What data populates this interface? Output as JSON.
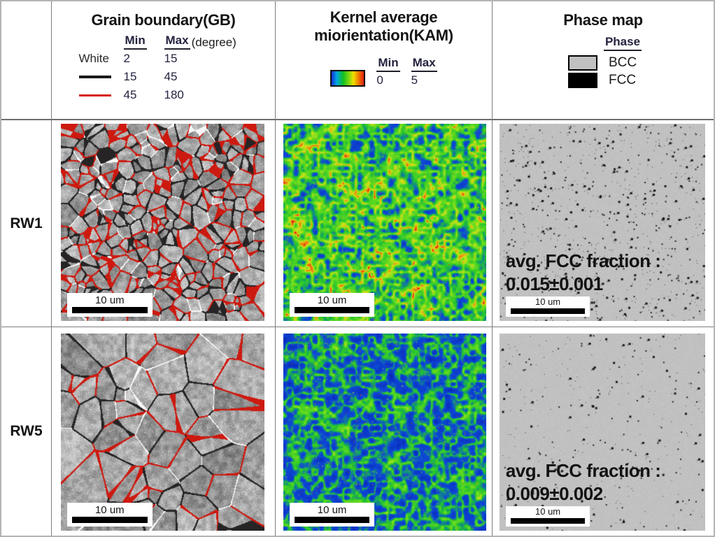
{
  "header": {
    "gb": {
      "title": "Grain boundary(GB)",
      "min_label": "Min",
      "max_label": "Max",
      "unit_label": "(degree)",
      "row_white": {
        "label": "White",
        "min": "2",
        "max": "15"
      },
      "row_black": {
        "swatch": "black-line",
        "min": "15",
        "max": "45"
      },
      "row_red": {
        "swatch": "red-line",
        "min": "45",
        "max": "180"
      }
    },
    "kam": {
      "title_line1": "Kernel average",
      "title_line2": "miorientation(KAM)",
      "min_label": "Min",
      "max_label": "Max",
      "min_value": "0",
      "max_value": "5",
      "colorbar_colors": [
        "#1530d8",
        "#00a8e0",
        "#10c020",
        "#80d810",
        "#f0e000",
        "#f07800",
        "#e02010"
      ]
    },
    "phase": {
      "title": "Phase map",
      "legend_header": "Phase",
      "entries": [
        {
          "label": "BCC",
          "color": "#c0c0c0"
        },
        {
          "label": "FCC",
          "color": "#000000"
        }
      ]
    }
  },
  "rows": [
    {
      "label": "RW1",
      "scale_label": "10 um",
      "fcc_text_line1": "avg. FCC fraction :",
      "fcc_text_line2": "0.015±0.001"
    },
    {
      "label": "RW5",
      "scale_label": "10 um",
      "fcc_text_line1": "avg. FCC fraction :",
      "fcc_text_line2": "0.009±0.002"
    }
  ],
  "colors": {
    "red_boundary": "#cd1a10",
    "black_boundary": "#262424",
    "white_boundary": "#f8f8f8",
    "phase_background": "#c1c1c1",
    "kam_blue": "#0e48d6",
    "kam_green": "#28c430",
    "grid_line": "#7d7d7d"
  },
  "micrographs": [
    {
      "panel": "gb-rw1",
      "type": "grain-boundary",
      "grains": 300,
      "seed": 11
    },
    {
      "panel": "kam-rw1",
      "type": "kam",
      "bias": 0.07,
      "seed": 21
    },
    {
      "panel": "phase-rw1",
      "type": "phase",
      "dots": 850,
      "seed": 31
    },
    {
      "panel": "gb-rw5",
      "type": "grain-boundary",
      "grains": 58,
      "seed": 41
    },
    {
      "panel": "kam-rw5",
      "type": "kam",
      "bias": -0.1,
      "seed": 51
    },
    {
      "panel": "phase-rw5",
      "type": "phase",
      "dots": 360,
      "seed": 61
    }
  ]
}
